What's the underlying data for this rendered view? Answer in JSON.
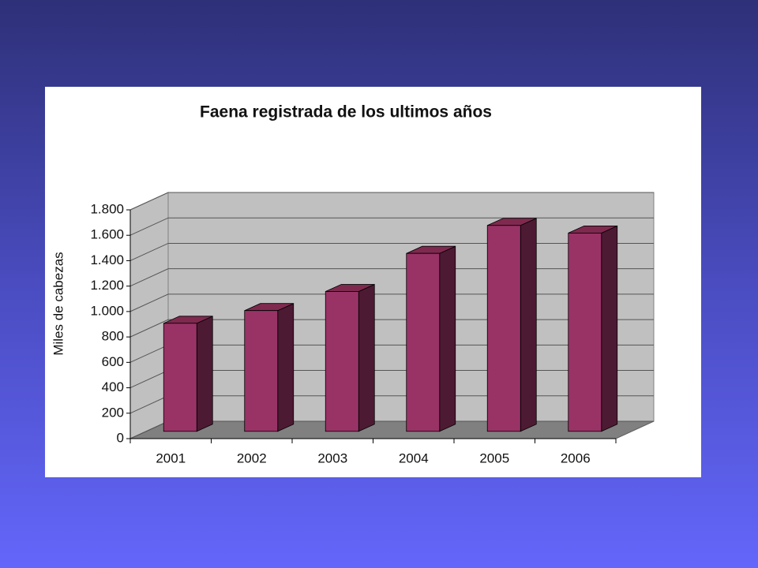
{
  "chart_data": {
    "type": "bar3d",
    "title": "Faena  registrada de los ultimos años",
    "y_label": "Miles de cabezas",
    "categories": [
      "2001",
      "2002",
      "2003",
      "2004",
      "2005",
      "2006"
    ],
    "values": [
      850,
      950,
      1100,
      1400,
      1620,
      1560
    ],
    "color": "#993366",
    "ylim": [
      0,
      1800
    ],
    "yticks": [
      0,
      200,
      400,
      600,
      800,
      {
        "value": 1000,
        "label": "1.000"
      },
      {
        "value": 1200,
        "label": "1.200"
      },
      {
        "value": 1400,
        "label": "1.400"
      },
      {
        "value": 1600,
        "label": "1.600"
      },
      {
        "value": 1800,
        "label": "1.800"
      }
    ],
    "grid": true
  }
}
